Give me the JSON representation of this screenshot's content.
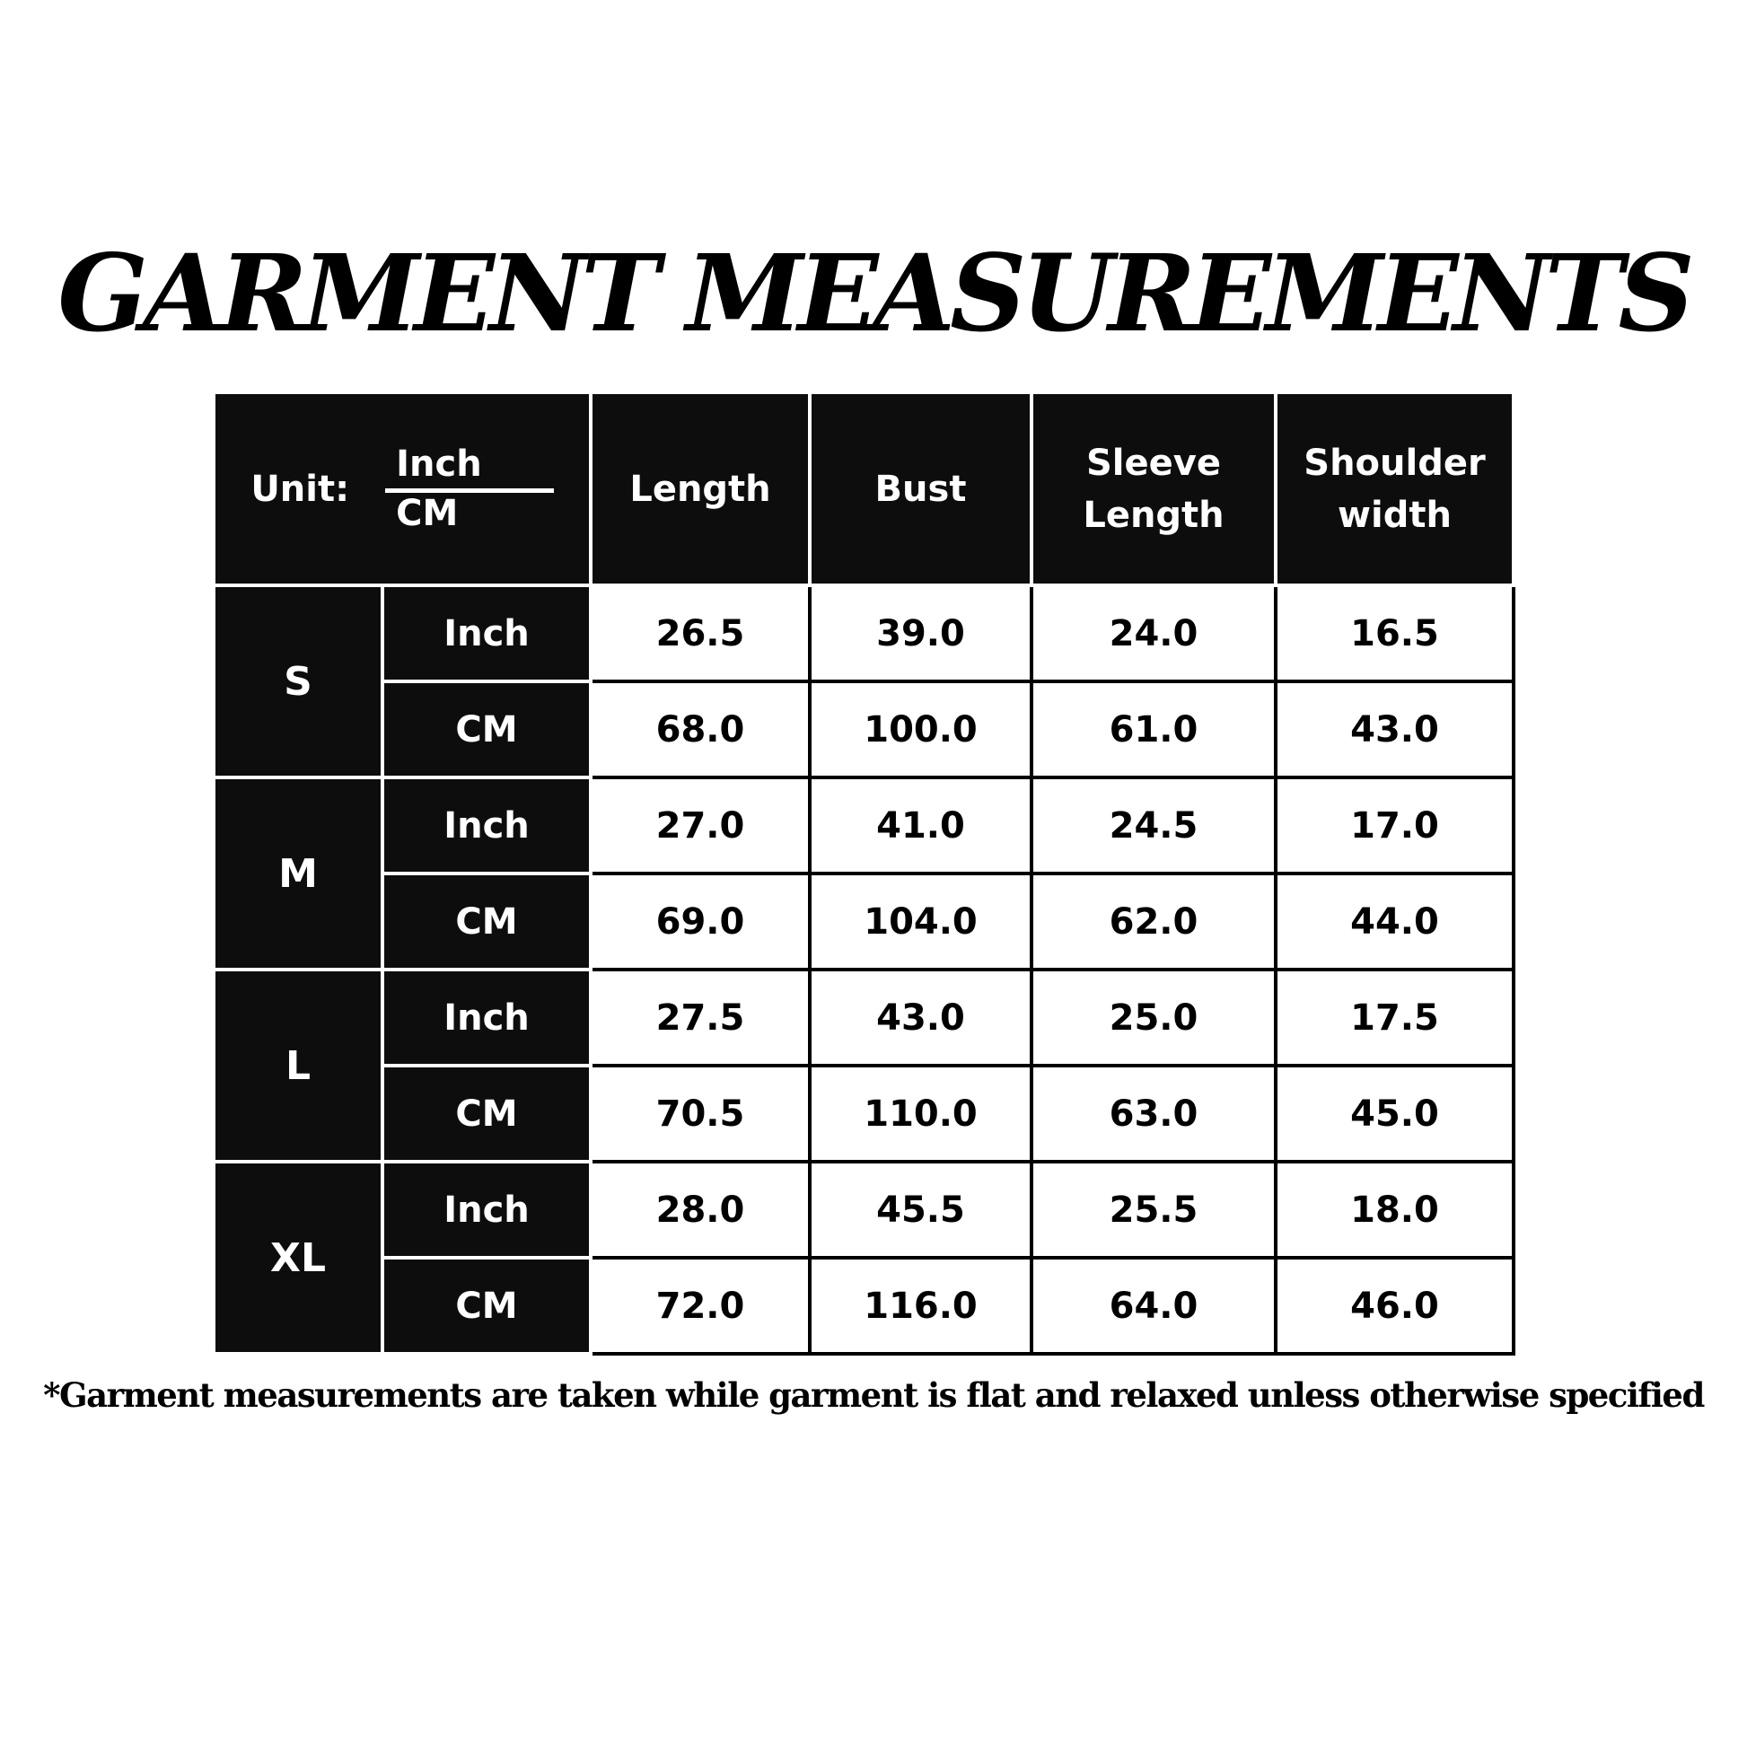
{
  "title": "GARMENT MEASUREMENTS",
  "table": {
    "unit_label": "Unit:",
    "unit_top": "Inch",
    "unit_bottom": "CM",
    "headers": [
      "Length",
      "Bust",
      "Sleeve Length",
      "Shoulder width"
    ],
    "rows": [
      {
        "size": "S",
        "inch": [
          "26.5",
          "39.0",
          "24.0",
          "16.5"
        ],
        "cm": [
          "68.0",
          "100.0",
          "61.0",
          "43.0"
        ]
      },
      {
        "size": "M",
        "inch": [
          "27.0",
          "41.0",
          "24.5",
          "17.0"
        ],
        "cm": [
          "69.0",
          "104.0",
          "62.0",
          "44.0"
        ]
      },
      {
        "size": "L",
        "inch": [
          "27.5",
          "43.0",
          "25.0",
          "17.5"
        ],
        "cm": [
          "70.5",
          "110.0",
          "63.0",
          "45.0"
        ]
      },
      {
        "size": "XL",
        "inch": [
          "28.0",
          "45.5",
          "25.5",
          "18.0"
        ],
        "cm": [
          "72.0",
          "116.0",
          "64.0",
          "46.0"
        ]
      }
    ],
    "inch_label": "Inch",
    "cm_label": "CM"
  },
  "footnote": "*Garment measurements are taken while garment is flat and relaxed unless otherwise specified",
  "colors": {
    "header_bg": "#0d0d0d",
    "header_text": "#ffffff",
    "cell_bg": "#ffffff",
    "cell_text": "#000000"
  }
}
